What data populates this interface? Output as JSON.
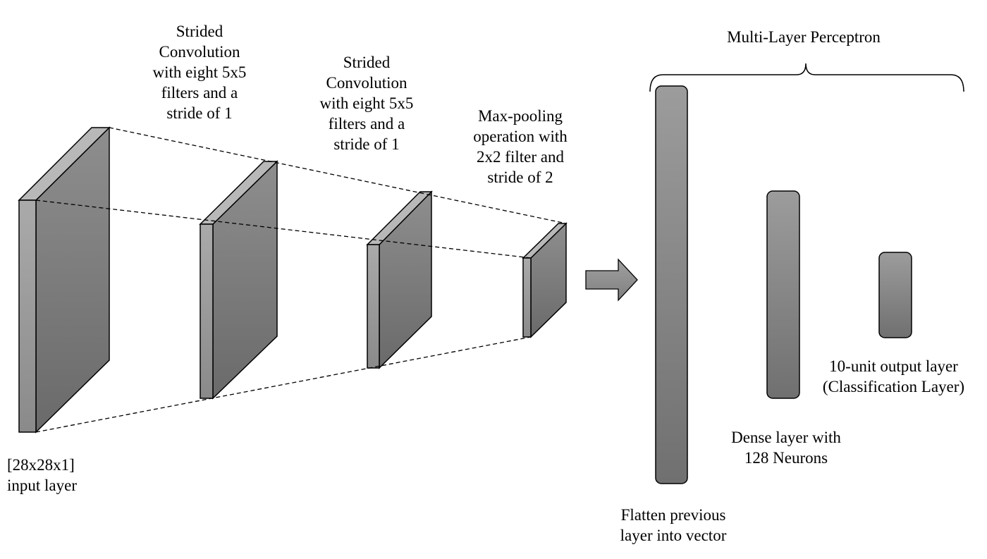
{
  "labels": {
    "conv1": "Strided\nConvolution\nwith eight 5x5\nfilters and a\nstride of 1",
    "conv2": "Strided\nConvolution\nwith eight 5x5\nfilters and a\nstride of 1",
    "maxpool": "Max-pooling\noperation with\n2x2 filter and\nstride of 2",
    "input": "[28x28x1]\ninput layer",
    "mlp": "Multi-Layer Perceptron",
    "flatten": "Flatten previous\nlayer into vector",
    "dense": "Dense layer with\n128 Neurons",
    "output": "10-unit output layer\n(Classification Layer)"
  },
  "colors": {
    "front_face_top": "#8e8e8e",
    "front_face_bottom": "#6f6f6f",
    "side_face": "#a8a8a8",
    "top_face": "#b4b4b4",
    "bar_top": "#9a9a9a",
    "bar_bottom": "#737373",
    "outline": "#000000"
  }
}
